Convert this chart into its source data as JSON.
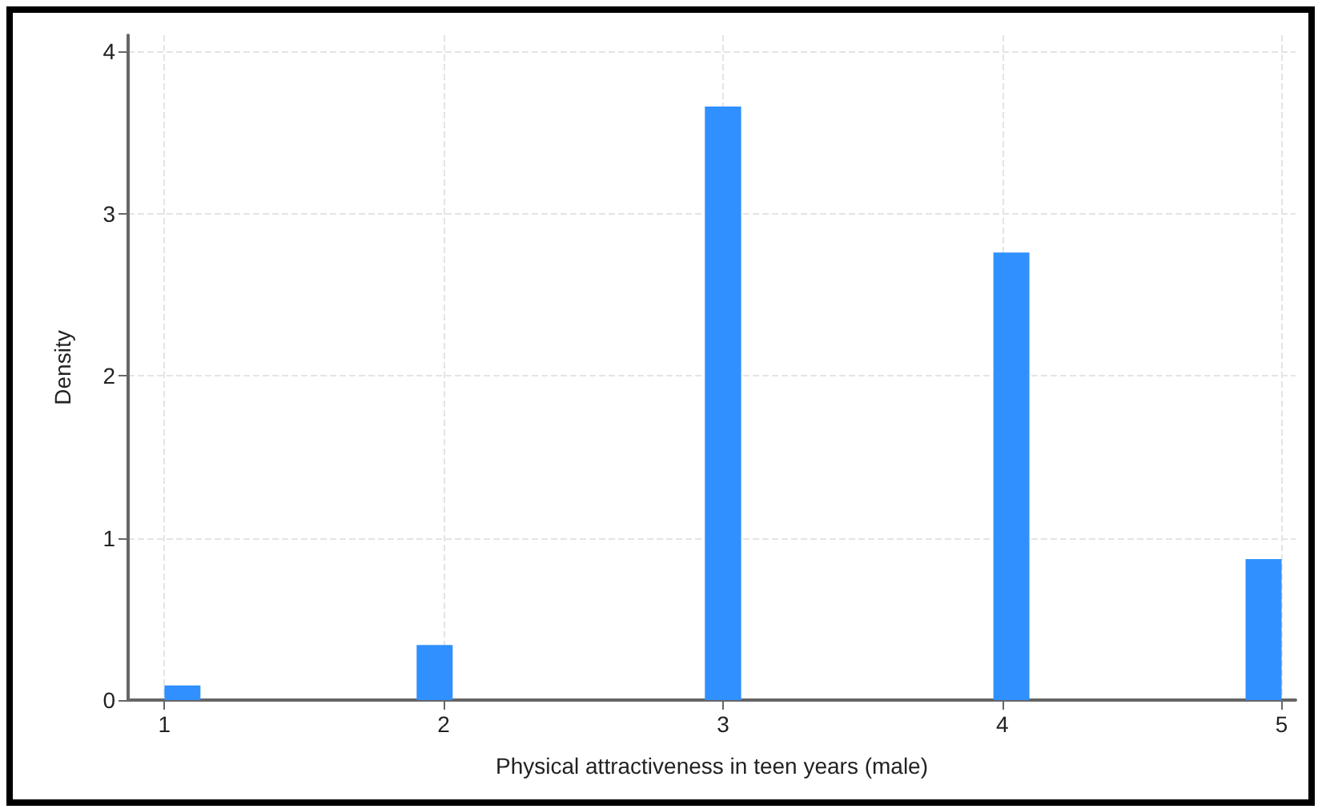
{
  "chart_data": {
    "type": "histogram",
    "xlabel": "Physical attractiveness in teen years (male)",
    "ylabel": "Density",
    "color": "#3090ff",
    "bins": [
      1,
      1.129,
      1.258,
      1.387,
      1.516,
      1.645,
      1.774,
      1.903,
      2.032,
      2.161,
      2.29,
      2.419,
      2.548,
      2.677,
      2.806,
      2.935,
      3.065,
      3.194,
      3.323,
      3.452,
      3.581,
      3.71,
      3.839,
      3.968,
      4.097,
      4.226,
      4.355,
      4.484,
      4.613,
      4.742,
      4.871,
      5
    ],
    "values": [
      0.09,
      0,
      0,
      0,
      0,
      0,
      0,
      0.34,
      0,
      0,
      0,
      0,
      0,
      0,
      0,
      3.66,
      0,
      0,
      0,
      0,
      0,
      0,
      0,
      2.76,
      0,
      0,
      0,
      0,
      0,
      0,
      0.87
    ],
    "xlim": [
      0.87,
      5.05
    ],
    "xticks": [
      1,
      2,
      3,
      4,
      5
    ],
    "ylim": [
      0,
      4.1
    ],
    "yticks": [
      0,
      1,
      2,
      3,
      4
    ],
    "grid": true
  }
}
